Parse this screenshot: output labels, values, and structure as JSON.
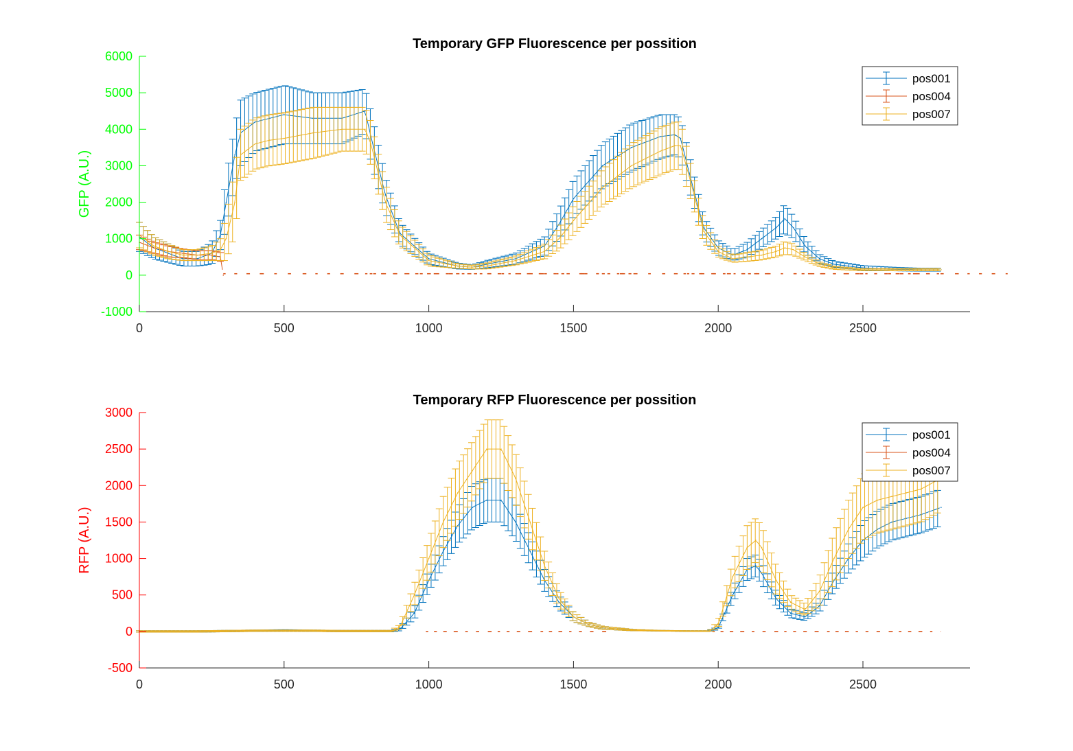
{
  "chart_data": [
    {
      "type": "line",
      "title": "Temporary GFP Fluorescence per possition",
      "xlabel": "",
      "ylabel": "GFP (A.U.)",
      "ylabel_color": "#00ff00",
      "xlim": [
        0,
        2870
      ],
      "ylim": [
        -1000,
        6000
      ],
      "xticks": [
        0,
        500,
        1000,
        1500,
        2000,
        2500
      ],
      "yticks": [
        -1000,
        0,
        1000,
        2000,
        3000,
        4000,
        5000,
        6000
      ],
      "error_bars": true,
      "legend_position": "top-right",
      "series": [
        {
          "name": "pos001",
          "color": "#0072bd",
          "x": [
            0,
            50,
            100,
            150,
            200,
            250,
            280,
            300,
            330,
            350,
            400,
            450,
            500,
            600,
            700,
            780,
            800,
            850,
            900,
            1000,
            1100,
            1150,
            1200,
            1300,
            1400,
            1450,
            1500,
            1600,
            1700,
            1800,
            1850,
            1870,
            1900,
            1950,
            2000,
            2050,
            2100,
            2150,
            2200,
            2230,
            2260,
            2300,
            2350,
            2400,
            2500,
            2600,
            2700,
            2770
          ],
          "values": [
            1050,
            750,
            600,
            450,
            450,
            600,
            1100,
            2000,
            3300,
            3900,
            4200,
            4300,
            4400,
            4300,
            4300,
            4500,
            3800,
            2200,
            1150,
            450,
            250,
            220,
            300,
            450,
            800,
            1400,
            2100,
            3000,
            3500,
            3800,
            3850,
            3750,
            2800,
            1300,
            750,
            550,
            700,
            1000,
            1300,
            1550,
            1300,
            800,
            450,
            300,
            200,
            170,
            150,
            150
          ],
          "err": [
            400,
            300,
            250,
            200,
            200,
            300,
            400,
            700,
            800,
            900,
            800,
            800,
            800,
            700,
            700,
            600,
            700,
            500,
            300,
            150,
            80,
            60,
            100,
            150,
            250,
            400,
            500,
            600,
            650,
            600,
            550,
            550,
            500,
            300,
            200,
            150,
            200,
            250,
            300,
            400,
            300,
            200,
            120,
            80,
            60,
            50,
            40,
            40
          ]
        },
        {
          "name": "pos004",
          "color": "#d95319",
          "x": [
            0,
            50,
            100,
            150,
            200,
            250,
            280,
            290
          ],
          "values": [
            900,
            750,
            650,
            600,
            550,
            550,
            500,
            0
          ],
          "err": [
            200,
            150,
            150,
            120,
            120,
            120,
            120,
            0
          ],
          "dashes_x": [
            [
              290,
              3000,
              40,
              30
            ],
            [
              780,
              1380,
              40,
              20
            ],
            [
              1380,
              1420,
              40,
              10
            ],
            [
              1440,
              1480,
              40,
              10
            ],
            [
              1520,
              1560,
              40,
              10
            ],
            [
              1580,
              1620,
              40,
              10
            ],
            [
              1650,
              1700,
              40,
              10
            ],
            [
              1880,
              2060,
              40,
              20
            ],
            [
              2080,
              2180,
              40,
              15
            ],
            [
              2260,
              2770,
              40,
              20
            ]
          ]
        },
        {
          "name": "pos007",
          "color": "#edb120",
          "x": [
            0,
            50,
            100,
            150,
            200,
            250,
            280,
            300,
            330,
            350,
            400,
            450,
            500,
            600,
            700,
            780,
            800,
            850,
            900,
            1000,
            1100,
            1150,
            1200,
            1300,
            1400,
            1450,
            1500,
            1600,
            1700,
            1800,
            1850,
            1870,
            1900,
            1950,
            2000,
            2050,
            2100,
            2150,
            2200,
            2230,
            2260,
            2300,
            2350,
            2400,
            2500,
            2600,
            2700,
            2770
          ],
          "values": [
            1100,
            800,
            650,
            550,
            550,
            600,
            700,
            1000,
            2000,
            3300,
            3600,
            3700,
            3750,
            3900,
            4000,
            4000,
            3600,
            2000,
            1100,
            400,
            250,
            220,
            250,
            400,
            650,
            1000,
            1500,
            2400,
            3000,
            3400,
            3550,
            3550,
            2700,
            1200,
            650,
            450,
            500,
            550,
            650,
            750,
            700,
            500,
            300,
            200,
            150,
            150,
            150,
            150
          ],
          "err": [
            350,
            250,
            200,
            150,
            150,
            200,
            300,
            600,
            900,
            700,
            700,
            700,
            700,
            700,
            600,
            600,
            600,
            500,
            300,
            150,
            60,
            50,
            80,
            120,
            200,
            300,
            400,
            500,
            600,
            650,
            650,
            650,
            500,
            300,
            150,
            100,
            120,
            130,
            150,
            180,
            150,
            100,
            60,
            40,
            30,
            30,
            30,
            30
          ]
        }
      ]
    },
    {
      "type": "line",
      "title": "Temporary RFP Fluorescence per possition",
      "xlabel": "",
      "ylabel": "RFP (A.U.)",
      "ylabel_color": "#ff0000",
      "xlim": [
        0,
        2870
      ],
      "ylim": [
        -500,
        3000
      ],
      "xticks": [
        0,
        500,
        1000,
        1500,
        2000,
        2500
      ],
      "yticks": [
        -500,
        0,
        500,
        1000,
        1500,
        2000,
        2500,
        3000
      ],
      "error_bars": true,
      "legend_position": "top-right",
      "series": [
        {
          "name": "pos001",
          "color": "#0072bd",
          "x": [
            0,
            100,
            200,
            300,
            400,
            500,
            600,
            700,
            800,
            870,
            900,
            950,
            1000,
            1050,
            1100,
            1150,
            1200,
            1250,
            1300,
            1350,
            1400,
            1450,
            1500,
            1550,
            1600,
            1700,
            1800,
            1900,
            1970,
            2000,
            2050,
            2100,
            2130,
            2150,
            2200,
            2250,
            2300,
            2350,
            2400,
            2450,
            2500,
            2550,
            2600,
            2650,
            2700,
            2770
          ],
          "values": [
            0,
            0,
            0,
            5,
            10,
            15,
            10,
            5,
            5,
            5,
            30,
            250,
            700,
            1100,
            1450,
            1700,
            1800,
            1800,
            1500,
            1100,
            700,
            400,
            200,
            100,
            50,
            20,
            10,
            5,
            5,
            50,
            500,
            850,
            900,
            800,
            450,
            250,
            200,
            350,
            700,
            1000,
            1250,
            1400,
            1500,
            1550,
            1600,
            1700
          ],
          "err": [
            10,
            10,
            10,
            10,
            10,
            10,
            10,
            10,
            10,
            10,
            20,
            80,
            150,
            200,
            250,
            300,
            300,
            300,
            250,
            200,
            150,
            100,
            60,
            30,
            20,
            10,
            5,
            5,
            5,
            20,
            100,
            150,
            150,
            150,
            100,
            60,
            50,
            80,
            150,
            200,
            250,
            250,
            250,
            250,
            250,
            250
          ]
        },
        {
          "name": "pos004",
          "color": "#d95319",
          "x": [],
          "values": [],
          "err": [],
          "dashes_x": [
            [
              990,
              1620,
              0,
              20
            ],
            [
              1980,
              2770,
              0,
              20
            ]
          ]
        },
        {
          "name": "pos007",
          "color": "#edb120",
          "x": [
            0,
            100,
            200,
            300,
            400,
            500,
            600,
            700,
            800,
            870,
            900,
            950,
            1000,
            1050,
            1100,
            1150,
            1200,
            1250,
            1300,
            1350,
            1400,
            1450,
            1500,
            1550,
            1600,
            1700,
            1800,
            1900,
            1970,
            2000,
            2050,
            2100,
            2130,
            2150,
            2200,
            2250,
            2300,
            2350,
            2400,
            2450,
            2500,
            2550,
            2600,
            2650,
            2700,
            2770
          ],
          "values": [
            0,
            0,
            0,
            5,
            10,
            10,
            10,
            5,
            5,
            5,
            60,
            500,
            1000,
            1500,
            1900,
            2200,
            2500,
            2500,
            2100,
            1500,
            900,
            450,
            200,
            100,
            50,
            20,
            10,
            5,
            5,
            100,
            750,
            1150,
            1250,
            1150,
            700,
            400,
            300,
            550,
            1000,
            1400,
            1700,
            1800,
            1850,
            1900,
            1950,
            2100
          ],
          "err": [
            10,
            10,
            10,
            10,
            10,
            10,
            10,
            10,
            10,
            10,
            30,
            150,
            250,
            350,
            400,
            400,
            400,
            400,
            350,
            300,
            200,
            120,
            60,
            30,
            20,
            10,
            5,
            5,
            5,
            50,
            200,
            300,
            300,
            300,
            200,
            100,
            80,
            200,
            350,
            400,
            450,
            450,
            450,
            450,
            450,
            450
          ]
        }
      ]
    }
  ]
}
